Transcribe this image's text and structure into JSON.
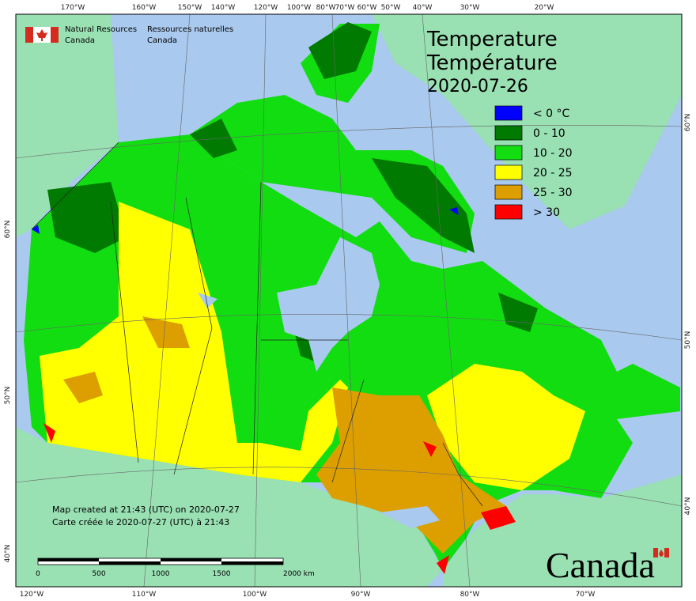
{
  "header": {
    "org_en": [
      "Natural Resources",
      "Canada"
    ],
    "org_fr": [
      "Ressources naturelles",
      "Canada"
    ]
  },
  "title": {
    "en": "Temperature",
    "fr": "Température",
    "date": "2020-07-26"
  },
  "legend": [
    {
      "label": "< 0 °C",
      "color": "#0000ff"
    },
    {
      "label": "0 - 10",
      "color": "#007a00"
    },
    {
      "label": "10 - 20",
      "color": "#11dd11"
    },
    {
      "label": "20 - 25",
      "color": "#ffff00"
    },
    {
      "label": "25 - 30",
      "color": "#dd9f00"
    },
    {
      "label": "> 30",
      "color": "#ff0000"
    }
  ],
  "note": [
    "Map created at 21:43 (UTC) on 2020-07-27",
    "Carte créée le 2020-07-27 (UTC) à 21:43"
  ],
  "scale_bar": [
    "0",
    "500",
    "1000",
    "1500",
    "2000 km"
  ],
  "graticule": {
    "top": [
      "170°W",
      "160°W",
      "150°W",
      "140°W",
      "120°W",
      "100°W",
      "80°W",
      "70°W",
      "60°W",
      "50°W",
      "40°W",
      "30°W",
      "20°W"
    ],
    "bottom": [
      "120°W",
      "110°W",
      "100°W",
      "90°W",
      "80°W",
      "70°W"
    ],
    "left": [
      "60°N",
      "50°N",
      "40°N"
    ],
    "right": [
      "60°N",
      "50°N",
      "40°N"
    ]
  },
  "wordmark": "Canada"
}
